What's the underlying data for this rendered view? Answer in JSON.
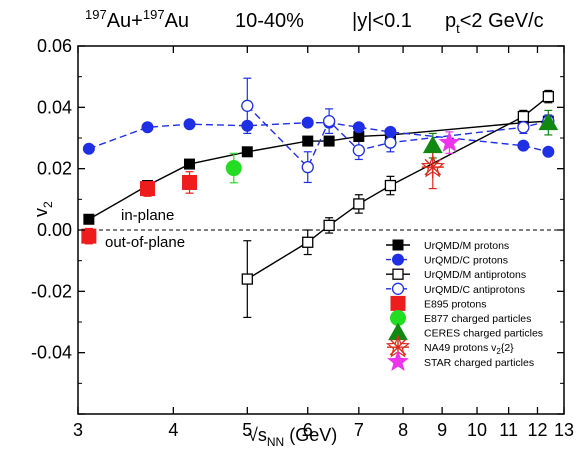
{
  "chart_data": {
    "type": "scatter",
    "title_parts": {
      "sys_mass1": "197",
      "sys_el1": "Au+",
      "sys_mass2": "197",
      "sys_el2": "Au",
      "centrality": "10-40%",
      "rapidity": "|y|<0.1",
      "pt_main": "p",
      "pt_sub": "t",
      "pt_rest": "<2 GeV/c"
    },
    "xlabel": {
      "prefix": "√s",
      "sub": "NN",
      "suffix": " (GeV)"
    },
    "ylabel": {
      "main": "v",
      "sub": "2"
    },
    "x_scale": "log",
    "xlim": [
      3,
      13
    ],
    "ylim": [
      -0.06,
      0.06
    ],
    "x_ticks": [
      3,
      4,
      5,
      6,
      7,
      8,
      9,
      10,
      11,
      12,
      13
    ],
    "x_tick_labels": [
      "3",
      "4",
      "5",
      "6",
      "7",
      "8",
      "9",
      "10",
      "11",
      "12",
      "13"
    ],
    "y_ticks": [
      -0.06,
      -0.04,
      -0.02,
      0.0,
      0.02,
      0.04,
      0.06
    ],
    "y_tick_labels": [
      "",
      "-0.04",
      "-0.02",
      "0.00",
      "0.02",
      "0.04",
      "0.06"
    ],
    "annotations": [
      "in-plane",
      "out-of-plane"
    ],
    "legend_position": "bottom-right",
    "series": [
      {
        "name": "UrQMD/M protons",
        "marker": "square-filled",
        "color": "#000000",
        "line": "solid",
        "x": [
          3.1,
          3.7,
          4.2,
          5.0,
          6.0,
          6.4,
          7.0,
          7.7,
          11.5,
          12.4
        ],
        "y": [
          0.0035,
          0.0145,
          0.0215,
          0.0255,
          0.029,
          0.029,
          0.0305,
          0.031,
          0.035,
          0.0355
        ]
      },
      {
        "name": "UrQMD/C protons",
        "marker": "circle-filled",
        "color": "#1f2fe6",
        "line": "dashed",
        "x": [
          3.1,
          3.7,
          4.2,
          5.0,
          6.0,
          6.4,
          7.0,
          7.7,
          11.5,
          12.4
        ],
        "y": [
          0.0265,
          0.0335,
          0.0345,
          0.034,
          0.035,
          0.035,
          0.0335,
          0.032,
          0.0275,
          0.0255
        ]
      },
      {
        "name": "UrQMD/M antiprotons",
        "marker": "square-open",
        "color": "#000000",
        "line": "solid",
        "x": [
          5.0,
          6.0,
          6.4,
          7.0,
          7.7,
          11.5,
          12.4
        ],
        "y": [
          -0.016,
          -0.004,
          0.0015,
          0.0085,
          0.0145,
          0.037,
          0.0435
        ],
        "err": [
          0.0125,
          0.004,
          0.0025,
          0.003,
          0.003,
          0.002,
          0.002
        ]
      },
      {
        "name": "UrQMD/C antiprotons",
        "marker": "circle-open",
        "color": "#1f2fe6",
        "line": "dashed",
        "x": [
          5.0,
          6.0,
          6.4,
          7.0,
          7.7,
          11.5,
          12.4
        ],
        "y": [
          0.0405,
          0.0205,
          0.0355,
          0.026,
          0.0285,
          0.0335,
          0.0355
        ],
        "err": [
          0.009,
          0.005,
          0.004,
          0.003,
          0.003,
          0.002,
          0.002
        ]
      },
      {
        "name": "E895 protons",
        "marker": "square-filled",
        "color": "#ee1c1c",
        "line": "none",
        "x": [
          3.1,
          3.7,
          4.2
        ],
        "y": [
          -0.002,
          0.0135,
          0.0155
        ],
        "err": [
          0.0025,
          0.0025,
          0.0035
        ]
      },
      {
        "name": "E877 charged particles",
        "marker": "circle-filled",
        "color": "#22dd22",
        "line": "none",
        "x": [
          4.8
        ],
        "y": [
          0.0202
        ],
        "err": [
          0.0048
        ]
      },
      {
        "name": "CERES charged particles",
        "marker": "triangle-filled",
        "color": "#118811",
        "line": "none",
        "x": [
          8.75,
          12.4
        ],
        "y": [
          0.0275,
          0.035
        ],
        "err": [
          0.004,
          0.004
        ]
      },
      {
        "name": "NA49 protons v",
        "name_sub": "2",
        "name_suffix": "{2}",
        "marker": "star-open",
        "color": "#dd2a1c",
        "line": "none",
        "x": [
          8.75
        ],
        "y": [
          0.0205
        ],
        "err": [
          0.007
        ]
      },
      {
        "name": "STAR charged particles",
        "marker": "star-filled",
        "color": "#ee33ee",
        "line": "none",
        "x": [
          9.2
        ],
        "y": [
          0.0285
        ],
        "err": [
          0.0035
        ]
      }
    ]
  }
}
